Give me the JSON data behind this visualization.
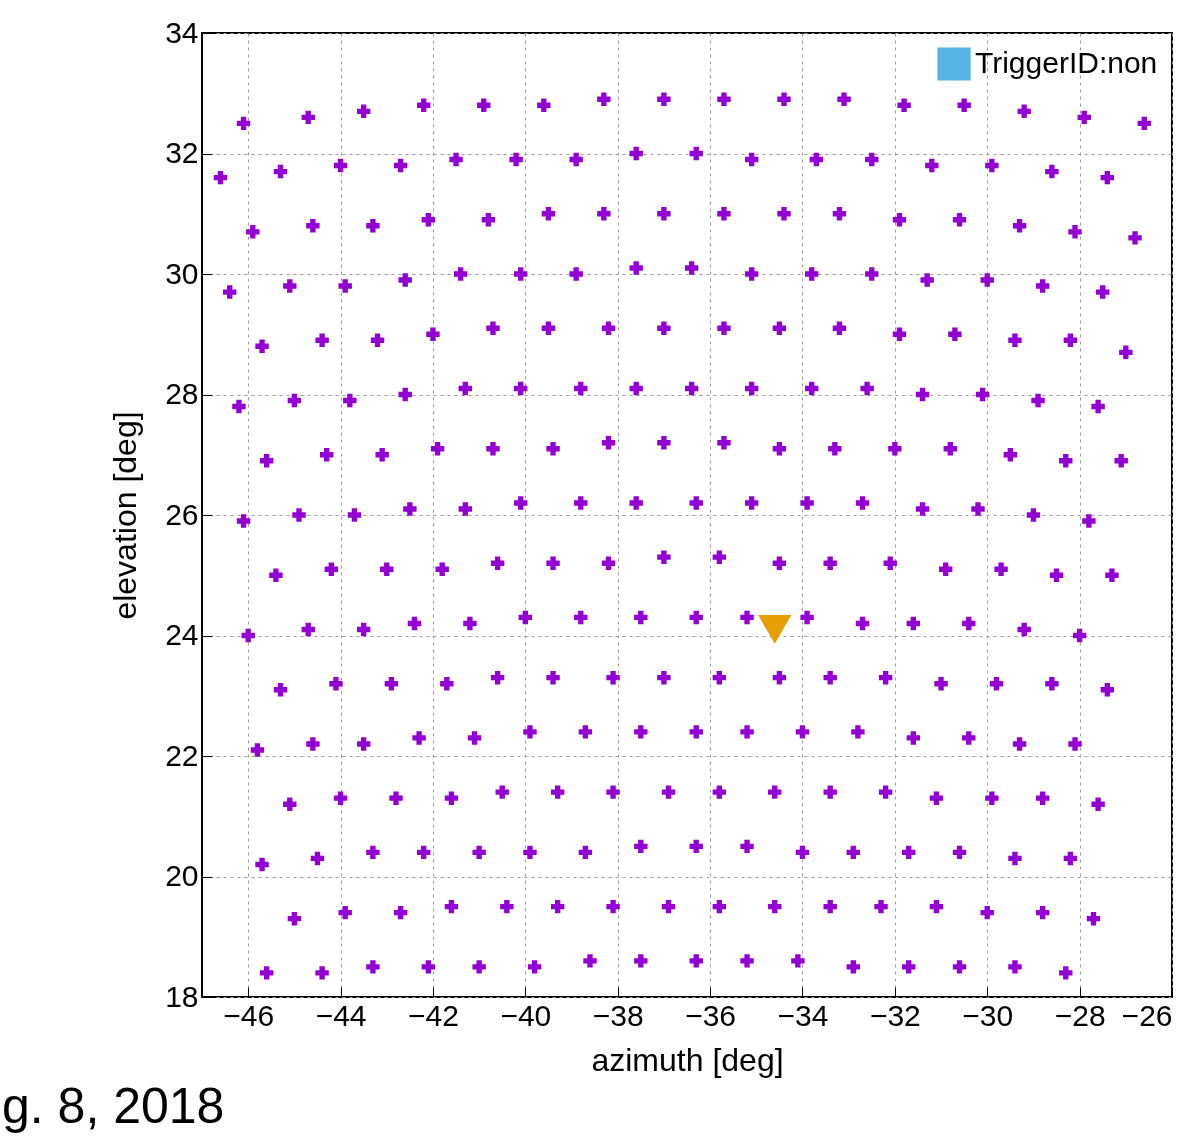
{
  "chart_data": {
    "type": "scatter",
    "xlabel": "azimuth [deg]",
    "ylabel": "elevation [deg]",
    "xlim": [
      -47,
      -26
    ],
    "ylim": [
      18,
      34
    ],
    "xticks": [
      -46,
      -44,
      -42,
      -40,
      -38,
      -36,
      -34,
      -32,
      -30,
      -28,
      -26
    ],
    "yticks": [
      18,
      20,
      22,
      24,
      26,
      28,
      30,
      32,
      34
    ],
    "grid": true,
    "legend": "top right",
    "annotations": [
      "g. 8, 2018"
    ],
    "series": [
      {
        "color": "#9400d3",
        "marker": "cross",
        "x": [
          -46.1,
          -44.7,
          -43.5,
          -42.2,
          -40.9,
          -39.6,
          -38.3,
          -37.0,
          -35.7,
          -34.4,
          -33.1,
          -31.8,
          -30.5,
          -29.2,
          -27.9,
          -26.6,
          -46.6,
          -45.3,
          -44.0,
          -42.7,
          -41.5,
          -40.2,
          -38.9,
          -37.6,
          -36.3,
          -35.1,
          -33.7,
          -32.5,
          -31.2,
          -29.9,
          -28.6,
          -27.4,
          -45.9,
          -44.6,
          -43.3,
          -42.1,
          -40.8,
          -39.5,
          -38.3,
          -37.0,
          -35.7,
          -34.4,
          -33.2,
          -31.9,
          -30.6,
          -29.3,
          -28.1,
          -26.8,
          -46.4,
          -45.1,
          -43.9,
          -42.6,
          -41.4,
          -40.1,
          -38.9,
          -37.6,
          -36.4,
          -35.1,
          -33.8,
          -32.5,
          -31.3,
          -30.0,
          -28.8,
          -27.5,
          -45.7,
          -44.4,
          -43.2,
          -42.0,
          -40.7,
          -39.5,
          -38.2,
          -37.0,
          -35.7,
          -34.5,
          -33.2,
          -31.9,
          -30.7,
          -29.4,
          -28.2,
          -27.0,
          -46.2,
          -45.0,
          -43.8,
          -42.6,
          -41.3,
          -40.1,
          -38.8,
          -37.6,
          -36.4,
          -35.1,
          -33.8,
          -32.6,
          -31.4,
          -30.1,
          -28.9,
          -27.6,
          -45.6,
          -44.3,
          -43.1,
          -41.9,
          -40.7,
          -39.4,
          -38.2,
          -37.0,
          -35.7,
          -34.5,
          -33.3,
          -32.0,
          -30.8,
          -29.5,
          -28.3,
          -27.1,
          -46.1,
          -44.9,
          -43.7,
          -42.5,
          -41.3,
          -40.1,
          -38.8,
          -37.6,
          -36.3,
          -35.1,
          -33.9,
          -32.7,
          -31.4,
          -30.2,
          -29.0,
          -27.8,
          -45.4,
          -44.2,
          -43.0,
          -41.8,
          -40.6,
          -39.4,
          -38.2,
          -37.0,
          -35.8,
          -34.5,
          -33.4,
          -32.1,
          -30.9,
          -29.7,
          -28.5,
          -27.3,
          -46.0,
          -44.7,
          -43.5,
          -42.4,
          -41.2,
          -40.0,
          -38.8,
          -37.5,
          -36.3,
          -35.2,
          -33.9,
          -32.7,
          -31.6,
          -30.4,
          -29.2,
          -28.0,
          -45.3,
          -44.1,
          -42.9,
          -41.7,
          -40.6,
          -39.4,
          -38.1,
          -37.0,
          -35.8,
          -34.5,
          -33.4,
          -32.2,
          -31.0,
          -29.8,
          -28.6,
          -27.4,
          -45.8,
          -44.6,
          -43.5,
          -42.3,
          -41.1,
          -39.9,
          -38.7,
          -37.5,
          -36.3,
          -35.2,
          -34.0,
          -32.8,
          -31.6,
          -30.4,
          -29.3,
          -28.1,
          -45.1,
          -44.0,
          -42.8,
          -41.6,
          -40.5,
          -39.3,
          -38.1,
          -36.9,
          -35.8,
          -34.6,
          -33.4,
          -32.2,
          -31.1,
          -29.9,
          -28.8,
          -27.6,
          -45.7,
          -44.5,
          -43.3,
          -42.2,
          -41.0,
          -39.9,
          -38.7,
          -37.5,
          -36.3,
          -35.2,
          -34.0,
          -32.9,
          -31.7,
          -30.6,
          -29.4,
          -28.2,
          -45.0,
          -43.9,
          -42.7,
          -41.6,
          -40.4,
          -39.3,
          -38.1,
          -36.9,
          -35.8,
          -34.6,
          -33.4,
          -32.3,
          -31.1,
          -30.0,
          -28.8,
          -27.7,
          -45.6,
          -44.4,
          -43.3,
          -42.1,
          -41.0,
          -39.8,
          -38.6,
          -37.5,
          -36.3,
          -35.2,
          -34.1,
          -32.9,
          -31.7,
          -30.6,
          -29.4,
          -28.3
        ],
        "values": [
          32.5,
          32.6,
          32.7,
          32.8,
          32.8,
          32.8,
          32.9,
          32.9,
          32.9,
          32.9,
          32.9,
          32.8,
          32.8,
          32.7,
          32.6,
          32.5,
          31.6,
          31.7,
          31.8,
          31.8,
          31.9,
          31.9,
          31.9,
          32.0,
          32.0,
          31.9,
          31.9,
          31.9,
          31.8,
          31.8,
          31.7,
          31.6,
          30.7,
          30.8,
          30.8,
          30.9,
          30.9,
          31.0,
          31.0,
          31.0,
          31.0,
          31.0,
          31.0,
          30.9,
          30.9,
          30.8,
          30.7,
          30.6,
          29.7,
          29.8,
          29.8,
          29.9,
          30.0,
          30.0,
          30.0,
          30.1,
          30.1,
          30.0,
          30.0,
          30.0,
          29.9,
          29.9,
          29.8,
          29.7,
          28.8,
          28.9,
          28.9,
          29.0,
          29.1,
          29.1,
          29.1,
          29.1,
          29.1,
          29.1,
          29.1,
          29.0,
          29.0,
          28.9,
          28.9,
          28.7,
          27.8,
          27.9,
          27.9,
          28.0,
          28.1,
          28.1,
          28.1,
          28.1,
          28.1,
          28.1,
          28.1,
          28.1,
          28.0,
          28.0,
          27.9,
          27.8,
          26.9,
          27.0,
          27.0,
          27.1,
          27.1,
          27.1,
          27.2,
          27.2,
          27.2,
          27.1,
          27.1,
          27.1,
          27.1,
          27.0,
          26.9,
          26.9,
          25.9,
          26.0,
          26.0,
          26.1,
          26.1,
          26.2,
          26.2,
          26.2,
          26.2,
          26.2,
          26.2,
          26.2,
          26.1,
          26.1,
          26.0,
          25.9,
          25.0,
          25.1,
          25.1,
          25.1,
          25.2,
          25.2,
          25.2,
          25.3,
          25.3,
          25.2,
          25.2,
          25.2,
          25.1,
          25.1,
          25.0,
          25.0,
          24.0,
          24.1,
          24.1,
          24.2,
          24.2,
          24.3,
          24.3,
          24.3,
          24.3,
          24.3,
          24.3,
          24.2,
          24.2,
          24.2,
          24.1,
          24.0,
          23.1,
          23.2,
          23.2,
          23.2,
          23.3,
          23.3,
          23.3,
          23.3,
          23.3,
          23.3,
          23.3,
          23.3,
          23.2,
          23.2,
          23.2,
          23.1,
          22.1,
          22.2,
          22.2,
          22.3,
          22.3,
          22.4,
          22.4,
          22.4,
          22.4,
          22.4,
          22.4,
          22.4,
          22.3,
          22.3,
          22.2,
          22.2,
          21.2,
          21.3,
          21.3,
          21.3,
          21.4,
          21.4,
          21.4,
          21.4,
          21.4,
          21.4,
          21.4,
          21.4,
          21.3,
          21.3,
          21.3,
          21.2,
          20.2,
          20.3,
          20.4,
          20.4,
          20.4,
          20.4,
          20.4,
          20.5,
          20.5,
          20.5,
          20.4,
          20.4,
          20.4,
          20.4,
          20.3,
          20.3,
          19.3,
          19.4,
          19.4,
          19.5,
          19.5,
          19.5,
          19.5,
          19.5,
          19.5,
          19.5,
          19.5,
          19.5,
          19.5,
          19.4,
          19.4,
          19.3,
          18.4,
          18.4,
          18.5,
          18.5,
          18.5,
          18.5,
          18.6,
          18.6,
          18.6,
          18.6,
          18.6,
          18.5,
          18.5,
          18.5,
          18.5,
          18.4
        ]
      },
      {
        "color": "#e69f00",
        "marker": "triangle",
        "x": [
          -34.6
        ],
        "values": [
          24.1
        ]
      },
      {
        "name": "TriggerID:non",
        "color": "#56b4e9",
        "marker": "square"
      }
    ]
  }
}
